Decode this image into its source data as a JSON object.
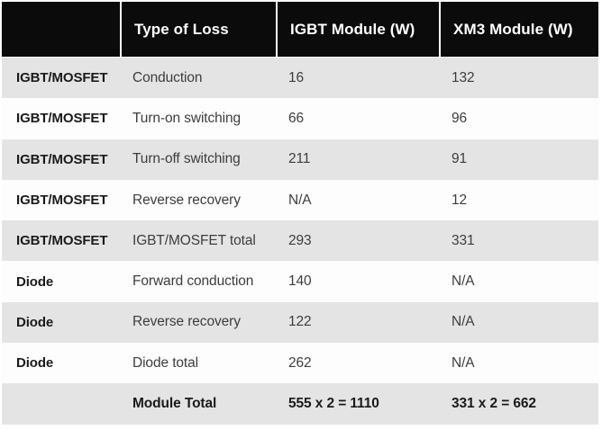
{
  "chart_data": {
    "type": "table",
    "title": "",
    "columns": [
      "",
      "Type of Loss",
      "IGBT Module (W)",
      "XM3 Module (W)"
    ],
    "rows": [
      {
        "category": "IGBT/MOSFET",
        "type_of_loss": "Conduction",
        "igbt_module_w": "16",
        "xm3_module_w": "132"
      },
      {
        "category": "IGBT/MOSFET",
        "type_of_loss": "Turn-on switching",
        "igbt_module_w": "66",
        "xm3_module_w": "96"
      },
      {
        "category": "IGBT/MOSFET",
        "type_of_loss": "Turn-off switching",
        "igbt_module_w": "211",
        "xm3_module_w": "91"
      },
      {
        "category": "IGBT/MOSFET",
        "type_of_loss": "Reverse recovery",
        "igbt_module_w": "N/A",
        "xm3_module_w": "12"
      },
      {
        "category": "IGBT/MOSFET",
        "type_of_loss": "IGBT/MOSFET total",
        "igbt_module_w": "293",
        "xm3_module_w": "331"
      },
      {
        "category": "Diode",
        "type_of_loss": "Forward conduction",
        "igbt_module_w": "140",
        "xm3_module_w": "N/A"
      },
      {
        "category": "Diode",
        "type_of_loss": "Reverse recovery",
        "igbt_module_w": "122",
        "xm3_module_w": "N/A"
      },
      {
        "category": "Diode",
        "type_of_loss": "Diode total",
        "igbt_module_w": "262",
        "xm3_module_w": "N/A"
      },
      {
        "category": "",
        "type_of_loss": "Module Total",
        "igbt_module_w": "555 x 2 = 1110",
        "xm3_module_w": "331 x 2 = 662",
        "bold": true
      }
    ],
    "colors": {
      "header_bg": "#0b0b0b",
      "header_text": "#ffffff",
      "row_alt_bg": "#e4e4e4",
      "row_bg": "#fdfdfd",
      "body_text": "#3d3d3d",
      "bold_text": "#1a1a1a"
    },
    "layout": {
      "striped": true,
      "first_data_row_shaded": true,
      "header_cell_separator": "#ffffff"
    }
  }
}
